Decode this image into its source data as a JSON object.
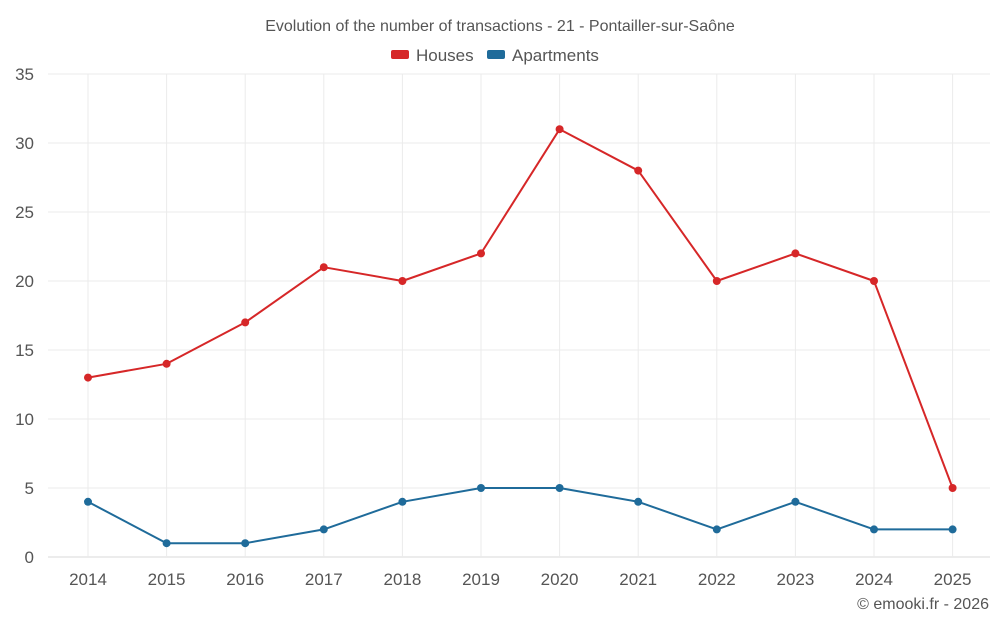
{
  "chart_data": {
    "type": "line",
    "title": "Evolution of the number of transactions - 21 - Pontailler-sur-Saône",
    "categories": [
      "2014",
      "2015",
      "2016",
      "2017",
      "2018",
      "2019",
      "2020",
      "2021",
      "2022",
      "2023",
      "2024",
      "2025"
    ],
    "series": [
      {
        "name": "Houses",
        "color": "#d62728",
        "values": [
          13,
          14,
          17,
          21,
          20,
          22,
          31,
          28,
          20,
          22,
          20,
          5
        ]
      },
      {
        "name": "Apartments",
        "color": "#1f6b9a",
        "values": [
          4,
          1,
          1,
          2,
          4,
          5,
          5,
          4,
          2,
          4,
          2,
          2
        ]
      }
    ],
    "yticks": [
      "0",
      "5",
      "10",
      "15",
      "20",
      "25",
      "30",
      "35"
    ],
    "ylim": [
      0,
      35
    ],
    "xlabel": "",
    "ylabel": "",
    "grid": true,
    "legend_position": "top-center"
  },
  "credit": "© emooki.fr - 2026"
}
